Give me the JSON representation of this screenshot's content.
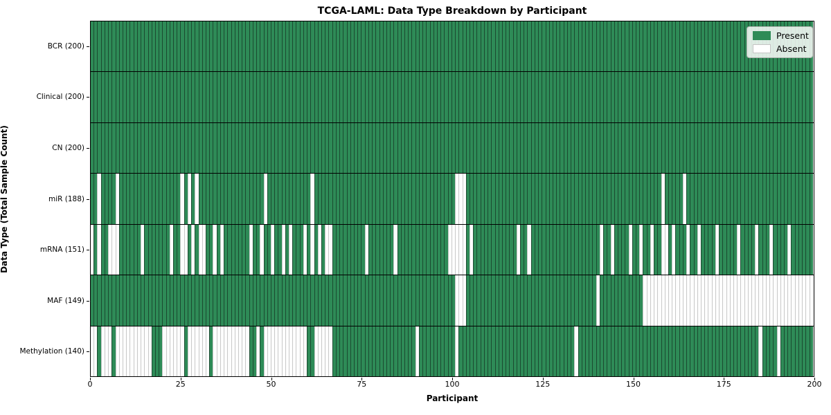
{
  "chart_data": {
    "type": "heatmap",
    "title": "TCGA-LAML: Data Type Breakdown by Participant",
    "xlabel": "Participant",
    "ylabel": "Data Type (Total Sample Count)",
    "n_participants": 200,
    "x_axis": {
      "range": [
        0,
        200
      ],
      "ticks": [
        0,
        25,
        50,
        75,
        100,
        125,
        150,
        175,
        200
      ]
    },
    "cell_states": [
      "Present",
      "Absent"
    ],
    "rows": [
      {
        "name": "BCR",
        "label": "BCR (200)",
        "present_count": 200,
        "absent": []
      },
      {
        "name": "Clinical",
        "label": "Clinical (200)",
        "present_count": 200,
        "absent": []
      },
      {
        "name": "CN",
        "label": "CN (200)",
        "present_count": 200,
        "absent": []
      },
      {
        "name": "miR",
        "label": "miR (188)",
        "present_count": 188,
        "absent": [
          2,
          7,
          25,
          27,
          29,
          48,
          61,
          101,
          102,
          103,
          158,
          164
        ]
      },
      {
        "name": "mRNA",
        "label": "mRNA (151)",
        "present_count": 151,
        "absent": [
          0,
          2,
          5,
          6,
          7,
          14,
          22,
          25,
          26,
          28,
          30,
          31,
          34,
          36,
          44,
          47,
          50,
          53,
          55,
          59,
          61,
          63,
          65,
          66,
          76,
          84,
          99,
          100,
          101,
          102,
          103,
          105,
          118,
          121,
          141,
          144,
          149,
          152,
          155,
          158,
          159,
          161,
          165,
          168,
          173,
          179,
          184,
          188,
          193
        ]
      },
      {
        "name": "MAF",
        "label": "MAF (149)",
        "present_count": 149,
        "absent": [
          101,
          102,
          103,
          140,
          153,
          154,
          155,
          156,
          157,
          158,
          159,
          160,
          161,
          162,
          163,
          164,
          165,
          166,
          167,
          168,
          169,
          170,
          171,
          172,
          173,
          174,
          175,
          176,
          177,
          178,
          179,
          180,
          181,
          182,
          183,
          184,
          185,
          186,
          187,
          188,
          189,
          190,
          191,
          192,
          193,
          194,
          195,
          196,
          197,
          198,
          199
        ]
      },
      {
        "name": "Methylation",
        "label": "Methylation (140)",
        "present_count": 140,
        "absent": [
          0,
          1,
          3,
          4,
          5,
          7,
          8,
          9,
          10,
          11,
          12,
          13,
          14,
          15,
          16,
          20,
          21,
          22,
          23,
          24,
          25,
          27,
          28,
          29,
          30,
          31,
          32,
          34,
          35,
          36,
          37,
          38,
          39,
          40,
          41,
          42,
          43,
          46,
          48,
          49,
          50,
          51,
          52,
          53,
          54,
          55,
          56,
          57,
          58,
          59,
          62,
          63,
          64,
          65,
          66,
          90,
          101,
          134,
          185,
          190
        ]
      }
    ],
    "legend": {
      "position": "upper right",
      "items": [
        {
          "label": "Present",
          "color": "#2e8b57"
        },
        {
          "label": "Absent",
          "color": "#ffffff"
        }
      ]
    },
    "colors": {
      "present": "#2e8b57",
      "absent": "#fdfdfd",
      "bar_edge": "#1b4a30",
      "absent_edge": "#c9c9c9",
      "row_separator": "#000000"
    }
  }
}
